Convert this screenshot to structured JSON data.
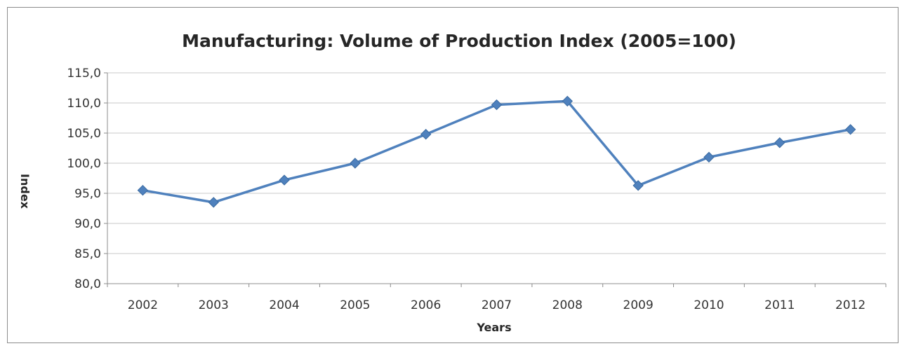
{
  "chart_data": {
    "type": "line",
    "title": "Manufacturing: Volume of Production Index (2005=100)",
    "xlabel": "Years",
    "ylabel": "Index",
    "categories": [
      "2002",
      "2003",
      "2004",
      "2005",
      "2006",
      "2007",
      "2008",
      "2009",
      "2010",
      "2011",
      "2012"
    ],
    "series": [
      {
        "values": [
          95.5,
          93.5,
          97.2,
          100.0,
          104.8,
          109.7,
          110.3,
          96.3,
          101.0,
          103.4,
          105.6
        ]
      }
    ],
    "ylim": [
      80,
      115
    ],
    "yticks": [
      "80,0",
      "85,0",
      "90,0",
      "95,0",
      "100,0",
      "105,0",
      "110,0",
      "115,0"
    ],
    "grid": true,
    "legend": "none",
    "line_color": "#4f81bd",
    "grid_color": "#c8c8c8"
  }
}
